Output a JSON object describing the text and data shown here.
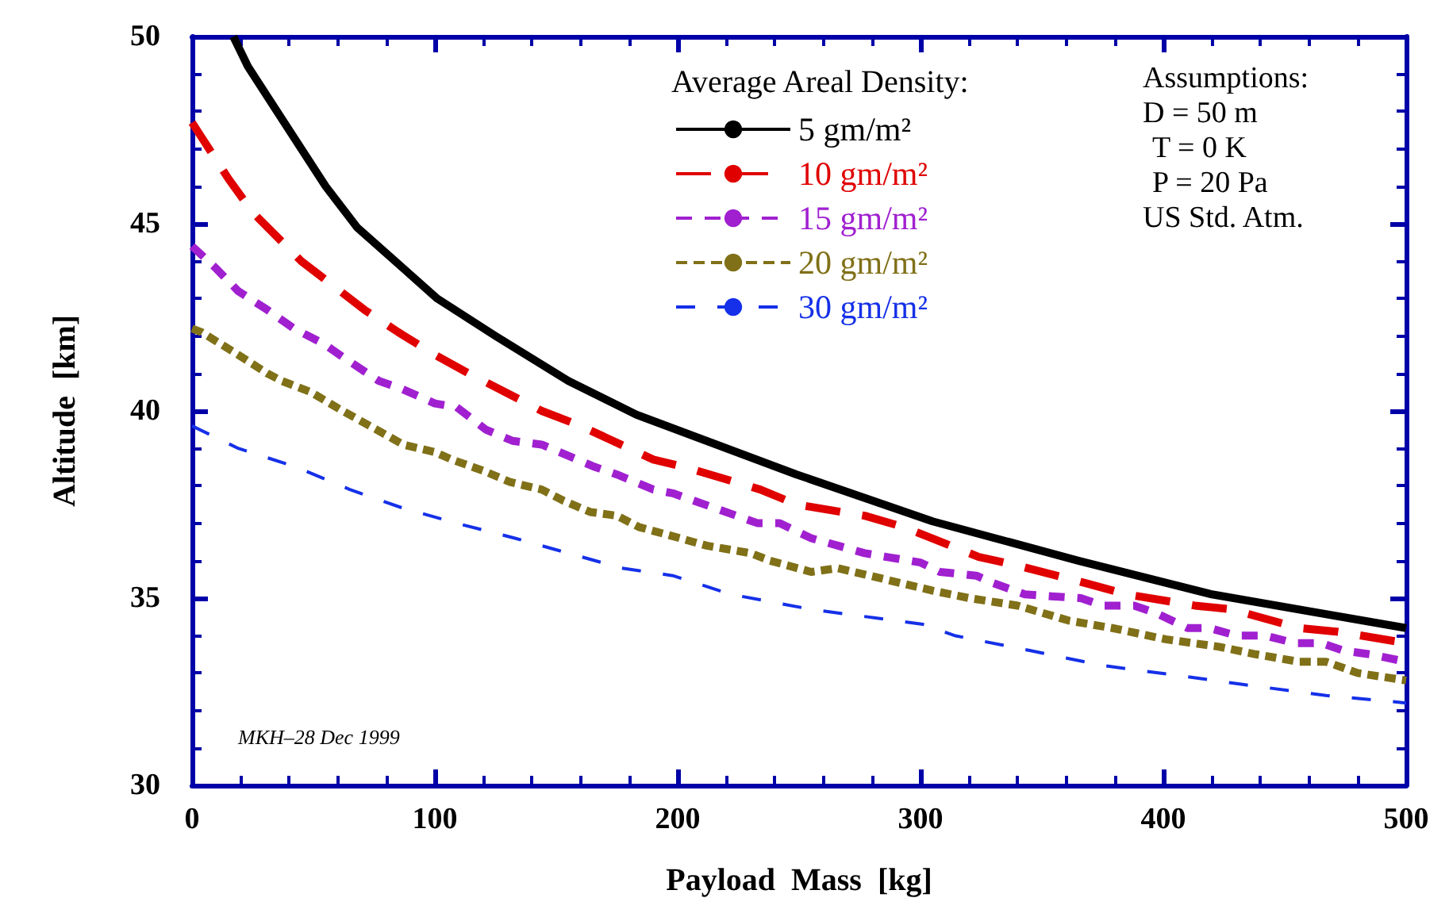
{
  "chart_data": {
    "type": "line",
    "xlabel": "Payload  Mass  [kg]",
    "ylabel": "Altitude  [km]",
    "legend_title": "Average Areal Density:",
    "xlim": [
      0,
      500
    ],
    "ylim": [
      30,
      50
    ],
    "xticks": [
      0,
      100,
      200,
      300,
      400,
      500
    ],
    "yticks": [
      30,
      35,
      40,
      45,
      50
    ],
    "grid": false,
    "legend": "top right",
    "marker": "none",
    "annotations": [
      "Assumptions:",
      "D = 50 m",
      "T = 0 K",
      "P = 20 Pa",
      "US Std. Atm.",
      "MKH–28 Dec 1999"
    ],
    "series": [
      {
        "name": "5 gm/m²",
        "color": "#000000",
        "line_style": "solid",
        "x": [
          17,
          23,
          34,
          55,
          68,
          101,
          125,
          155,
          183,
          249,
          305,
          365,
          420,
          500
        ],
        "values": [
          50,
          49.2,
          48.1,
          46,
          44.9,
          43,
          42,
          40.8,
          39.9,
          38.3,
          37.05,
          36,
          35.1,
          34.2
        ]
      },
      {
        "name": "10 gm/m²",
        "color": "#e00000",
        "line_style": "dashed",
        "x": [
          0,
          15,
          25,
          45,
          55,
          71,
          85,
          100,
          114,
          144,
          160,
          190,
          203,
          234,
          249,
          277,
          293,
          324,
          338,
          368,
          385,
          413,
          428,
          456,
          472,
          500
        ],
        "values": [
          47.7,
          46.2,
          45.3,
          44,
          43.5,
          42.7,
          42.1,
          41.5,
          41,
          40,
          39.6,
          38.7,
          38.5,
          37.9,
          37.5,
          37.2,
          36.9,
          36.1,
          35.9,
          35.4,
          35.1,
          34.8,
          34.7,
          34.2,
          34.1,
          33.8
        ]
      },
      {
        "name": "15 gm/m²",
        "color": "#a020d0",
        "line_style": "dashed",
        "x": [
          0,
          10,
          19,
          31,
          42,
          54,
          63,
          77,
          86,
          100,
          109,
          121,
          132,
          144,
          155,
          166,
          175,
          190,
          198,
          233,
          242,
          255,
          266,
          277,
          286,
          300,
          308,
          323,
          330,
          343,
          354,
          366,
          375,
          388,
          397,
          410,
          419,
          430,
          442,
          454,
          465,
          474,
          485,
          500
        ],
        "values": [
          44.4,
          43.8,
          43.2,
          42.7,
          42.2,
          41.8,
          41.4,
          40.8,
          40.6,
          40.2,
          40.1,
          39.5,
          39.2,
          39.1,
          38.8,
          38.5,
          38.3,
          37.9,
          37.8,
          37,
          37,
          36.6,
          36.4,
          36.2,
          36.1,
          35.95,
          35.7,
          35.6,
          35.4,
          35.1,
          35.05,
          35,
          34.8,
          34.8,
          34.6,
          34.2,
          34.2,
          34,
          34,
          33.8,
          33.8,
          33.6,
          33.5,
          33.3
        ]
      },
      {
        "name": "20 gm/m²",
        "color": "#807018",
        "line_style": "dotted",
        "x": [
          0,
          4,
          19,
          31,
          37,
          49,
          62,
          76,
          87,
          100,
          107,
          120,
          131,
          144,
          153,
          164,
          175,
          184,
          201,
          212,
          230,
          238,
          255,
          266,
          292,
          305,
          320,
          340,
          361,
          379,
          401,
          423,
          438,
          456,
          467,
          480,
          500
        ],
        "values": [
          42.2,
          42.1,
          41.5,
          41,
          40.8,
          40.5,
          40,
          39.5,
          39.1,
          38.9,
          38.7,
          38.4,
          38.1,
          37.9,
          37.6,
          37.3,
          37.2,
          36.9,
          36.6,
          36.4,
          36.2,
          36,
          35.7,
          35.8,
          35.4,
          35.2,
          35,
          34.8,
          34.4,
          34.2,
          33.9,
          33.7,
          33.5,
          33.3,
          33.3,
          33,
          32.8
        ]
      },
      {
        "name": "30 gm/m²",
        "color": "#1530e8",
        "line_style": "dashed",
        "x": [
          0,
          19,
          43,
          65,
          87,
          109,
          133,
          155,
          177,
          198,
          222,
          255,
          301,
          314,
          345,
          375,
          410,
          432,
          467,
          500
        ],
        "values": [
          39.6,
          39,
          38.5,
          37.9,
          37.4,
          37,
          36.6,
          36.2,
          35.8,
          35.6,
          35.1,
          34.7,
          34.3,
          34,
          33.6,
          33.2,
          32.9,
          32.7,
          32.4,
          32.2
        ]
      }
    ]
  }
}
